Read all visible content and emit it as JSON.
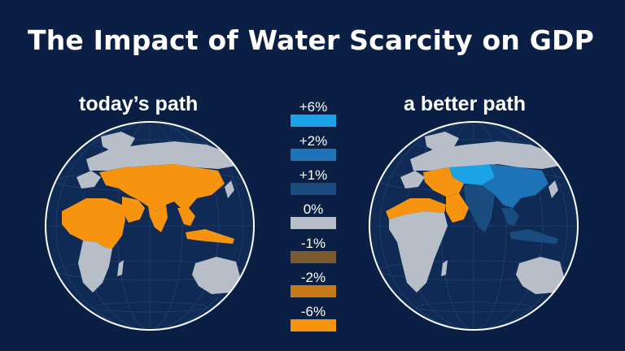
{
  "title": "The Impact of Water Scarcity on GDP",
  "panels": {
    "left": {
      "label": "today’s path"
    },
    "right": {
      "label": "a better path"
    }
  },
  "legend": [
    {
      "label": "+6%",
      "color": "#1aa3e6"
    },
    {
      "label": "+2%",
      "color": "#1d73b5"
    },
    {
      "label": "+1%",
      "color": "#1a4c80"
    },
    {
      "label": "0%",
      "color": "#b7bec7"
    },
    {
      "label": "-1%",
      "color": "#7a5a2e"
    },
    {
      "label": "-2%",
      "color": "#c57a17"
    },
    {
      "label": "-6%",
      "color": "#f7940f"
    }
  ],
  "colors": {
    "background": "#0b1f45",
    "ocean": "#0f2a55",
    "land_neutral": "#b7bec7",
    "orange": "#f7940f",
    "dark_blue": "#1a4c80",
    "mid_blue": "#1d73b5",
    "light_blue": "#1aa3e6"
  }
}
